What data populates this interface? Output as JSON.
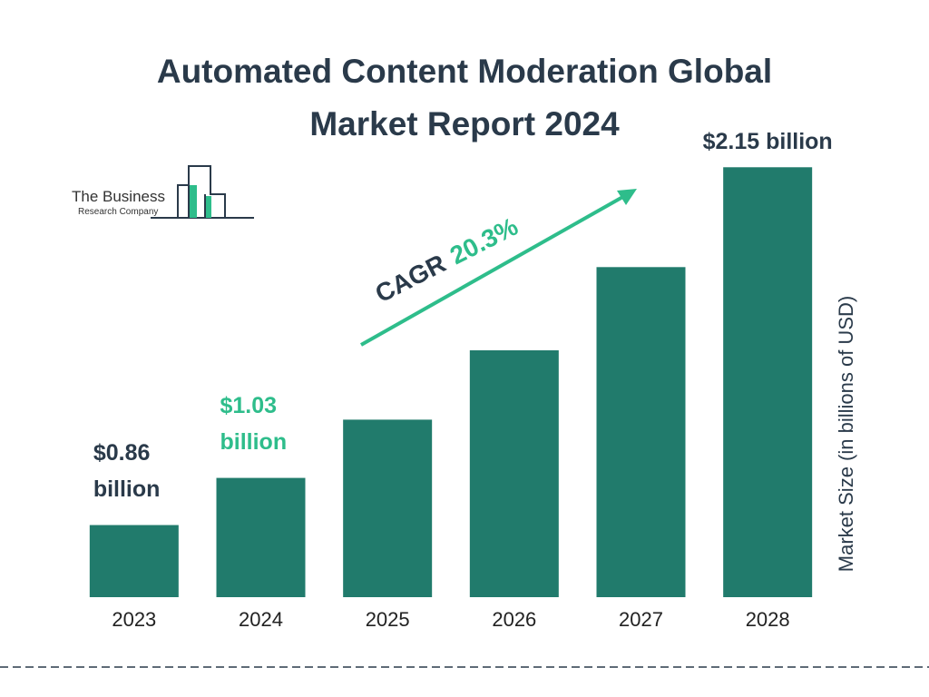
{
  "chart_data": {
    "type": "bar",
    "title": "Automated Content Moderation Global Market Report 2024",
    "y_axis_label": "Market Size (in billions of USD)",
    "categories": [
      "2023",
      "2024",
      "2025",
      "2026",
      "2027",
      "2028"
    ],
    "values": [
      0.86,
      1.03,
      1.24,
      1.49,
      1.79,
      2.15
    ],
    "value_labels": [
      "$0.86 billion",
      "$1.03 billion",
      null,
      null,
      null,
      "$2.15 billion"
    ],
    "value_label_colors": [
      "#2a3a4a",
      "#2ebd8b",
      null,
      null,
      null,
      "#2a3a4a"
    ],
    "color": "#217b6c",
    "ylim": [
      0.6,
      2.2
    ],
    "annotation": {
      "label": "CAGR",
      "value": "20.3%",
      "label_color": "#2a3a4a",
      "value_color": "#2ebd8b"
    }
  },
  "logo": {
    "line1": "The Business",
    "line2": "Research Company"
  }
}
